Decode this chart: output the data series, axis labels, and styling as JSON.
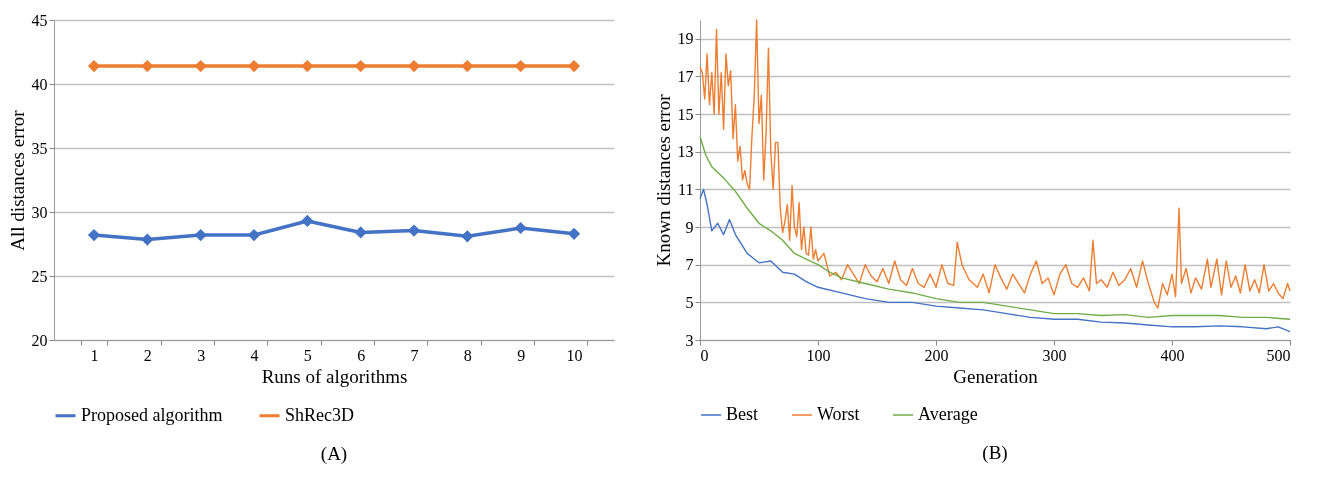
{
  "chart_data": [
    {
      "type": "line",
      "xlabel": "Runs of algorithms",
      "ylabel": "All distances error",
      "categories": [
        "1",
        "2",
        "3",
        "4",
        "5",
        "6",
        "7",
        "8",
        "9",
        "10"
      ],
      "ylim": [
        20,
        45
      ],
      "yticks": [
        20,
        25,
        30,
        35,
        40,
        45
      ],
      "grid": "y",
      "legend": "bottom",
      "marker": "diamond",
      "annotations": [
        "(A)"
      ],
      "series": [
        {
          "name": "Proposed algorithm",
          "color": "#4472c4",
          "values": [
            28.2,
            27.85,
            28.2,
            28.2,
            29.3,
            28.4,
            28.55,
            28.1,
            28.75,
            28.3
          ]
        },
        {
          "name": "ShRec3D",
          "color": "#ed7d31",
          "values": [
            41.4,
            41.4,
            41.4,
            41.4,
            41.4,
            41.4,
            41.4,
            41.4,
            41.4,
            41.4
          ]
        }
      ]
    },
    {
      "type": "line",
      "xlabel": "Generation",
      "ylabel": "Known distances error",
      "xlim": [
        0,
        500
      ],
      "xticks": [
        0,
        100,
        200,
        300,
        400,
        500
      ],
      "ylim": [
        3,
        20
      ],
      "yticks": [
        3,
        5,
        7,
        9,
        11,
        13,
        15,
        17,
        19
      ],
      "grid": "y",
      "legend": "bottom",
      "marker": "none",
      "annotations": [
        "(B)"
      ],
      "series": [
        {
          "name": "Best",
          "color": "#4472c4",
          "x": [
            0,
            3,
            6,
            10,
            15,
            20,
            25,
            30,
            40,
            50,
            60,
            70,
            80,
            90,
            100,
            120,
            140,
            160,
            180,
            200,
            220,
            240,
            260,
            280,
            300,
            320,
            340,
            360,
            380,
            400,
            420,
            440,
            460,
            480,
            490,
            500
          ],
          "values": [
            10.5,
            11.0,
            10.2,
            8.8,
            9.2,
            8.6,
            9.4,
            8.6,
            7.6,
            7.1,
            7.2,
            6.6,
            6.5,
            6.1,
            5.8,
            5.5,
            5.2,
            5.0,
            5.0,
            4.8,
            4.7,
            4.6,
            4.4,
            4.2,
            4.1,
            4.1,
            3.95,
            3.9,
            3.8,
            3.7,
            3.7,
            3.75,
            3.7,
            3.6,
            3.7,
            3.45
          ]
        },
        {
          "name": "Worst",
          "color": "#ed7d31",
          "x": [
            0,
            2,
            4,
            6,
            8,
            10,
            12,
            14,
            16,
            18,
            20,
            22,
            24,
            26,
            28,
            30,
            32,
            34,
            36,
            38,
            40,
            42,
            44,
            46,
            48,
            50,
            52,
            54,
            56,
            58,
            60,
            62,
            64,
            66,
            68,
            70,
            72,
            74,
            76,
            78,
            80,
            82,
            84,
            86,
            88,
            90,
            92,
            94,
            96,
            98,
            100,
            105,
            110,
            115,
            120,
            125,
            130,
            135,
            140,
            145,
            150,
            155,
            160,
            165,
            170,
            175,
            180,
            185,
            190,
            195,
            200,
            205,
            210,
            215,
            218,
            222,
            228,
            235,
            240,
            245,
            250,
            255,
            260,
            265,
            270,
            275,
            280,
            285,
            290,
            295,
            300,
            305,
            310,
            315,
            320,
            325,
            330,
            333,
            336,
            340,
            345,
            350,
            355,
            360,
            365,
            370,
            375,
            380,
            385,
            388,
            392,
            396,
            400,
            403,
            406,
            408,
            412,
            416,
            420,
            425,
            430,
            433,
            438,
            442,
            446,
            450,
            454,
            458,
            462,
            466,
            470,
            474,
            478,
            482,
            486,
            490,
            494,
            498,
            500
          ],
          "values": [
            17.5,
            17.2,
            15.8,
            18.2,
            15.5,
            17.2,
            15.0,
            19.5,
            15.0,
            17.2,
            14.2,
            18.2,
            16.5,
            17.3,
            13.7,
            15.5,
            12.5,
            13.3,
            11.5,
            12.0,
            11.3,
            11.0,
            13.8,
            16.0,
            20.0,
            14.5,
            16.0,
            11.5,
            14.0,
            18.5,
            13.0,
            11.0,
            13.5,
            13.5,
            10.0,
            8.7,
            9.3,
            10.2,
            8.3,
            11.2,
            9.0,
            8.5,
            10.3,
            7.8,
            9.0,
            7.6,
            7.5,
            9.0,
            7.3,
            7.8,
            7.2,
            7.6,
            6.4,
            6.6,
            6.2,
            7.0,
            6.5,
            6.0,
            7.0,
            6.4,
            6.1,
            6.8,
            6.0,
            7.2,
            6.2,
            5.9,
            6.8,
            6.0,
            5.8,
            6.5,
            5.8,
            7.0,
            6.0,
            5.9,
            8.2,
            7.0,
            6.2,
            5.8,
            6.5,
            5.5,
            7.0,
            6.3,
            5.7,
            6.5,
            6.0,
            5.5,
            6.5,
            7.2,
            6.0,
            6.3,
            5.4,
            6.5,
            7.0,
            6.0,
            5.8,
            6.3,
            5.6,
            8.3,
            6.0,
            6.2,
            5.8,
            6.6,
            5.9,
            6.2,
            6.8,
            5.8,
            7.2,
            6.0,
            5.0,
            4.7,
            6.0,
            5.4,
            6.5,
            5.3,
            10.0,
            6.0,
            6.8,
            5.5,
            6.3,
            5.7,
            7.3,
            5.8,
            7.3,
            5.4,
            7.2,
            5.8,
            6.4,
            5.5,
            7.0,
            5.6,
            6.2,
            5.5,
            7.0,
            5.6,
            6.0,
            5.5,
            5.2,
            6.0,
            5.6
          ]
        },
        {
          "name": "Average",
          "color": "#70ad47",
          "x": [
            0,
            5,
            10,
            20,
            30,
            40,
            50,
            60,
            70,
            80,
            90,
            100,
            110,
            120,
            140,
            160,
            180,
            200,
            220,
            240,
            260,
            280,
            300,
            320,
            340,
            360,
            380,
            400,
            420,
            440,
            460,
            480,
            500
          ],
          "values": [
            13.8,
            12.8,
            12.2,
            11.6,
            10.9,
            10.0,
            9.2,
            8.8,
            8.3,
            7.6,
            7.3,
            7.0,
            6.6,
            6.3,
            6.0,
            5.7,
            5.5,
            5.2,
            5.0,
            5.0,
            4.8,
            4.6,
            4.4,
            4.4,
            4.3,
            4.35,
            4.2,
            4.3,
            4.3,
            4.3,
            4.2,
            4.2,
            4.1
          ]
        }
      ]
    }
  ]
}
